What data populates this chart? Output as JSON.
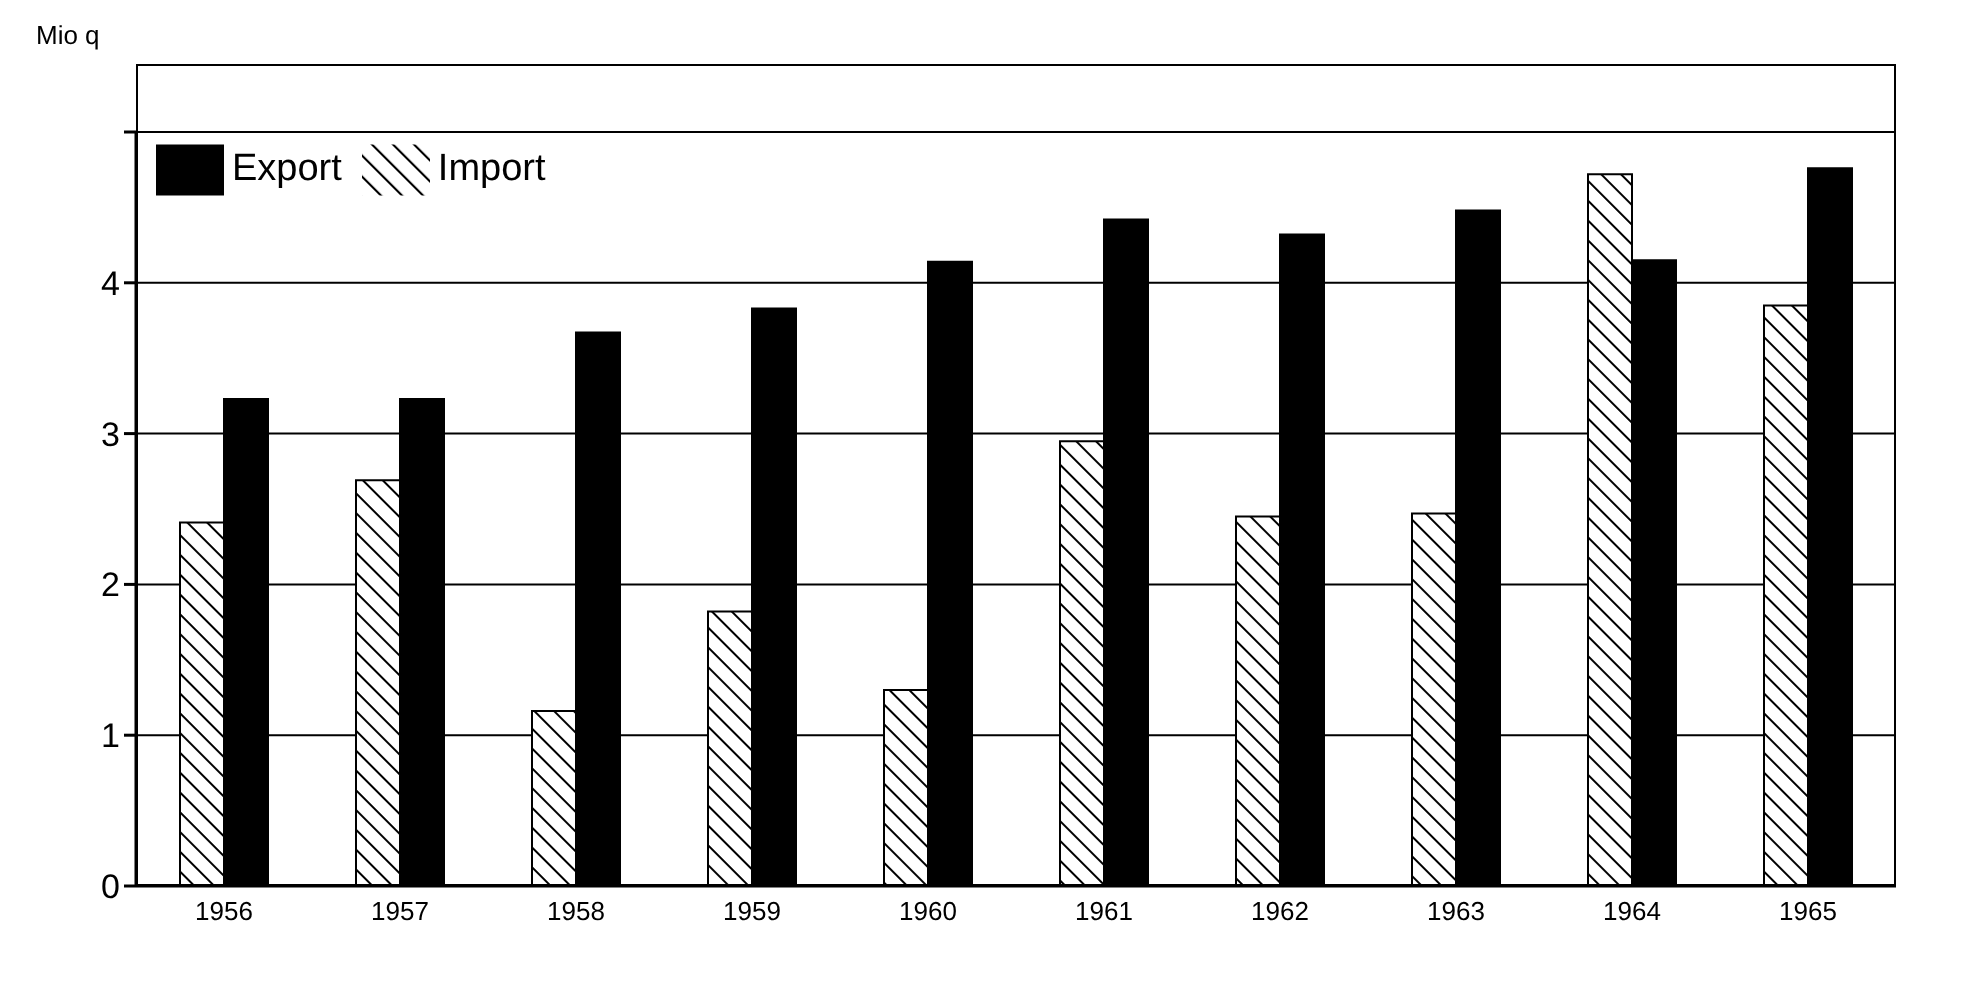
{
  "chart_data": {
    "type": "bar",
    "ylabel": "Mio q",
    "categories": [
      "1956",
      "1957",
      "1958",
      "1959",
      "1960",
      "1961",
      "1962",
      "1963",
      "1964",
      "1965"
    ],
    "series": [
      {
        "name": "Import",
        "color": "#000000",
        "values": [
          2.41,
          2.69,
          1.16,
          1.82,
          1.3,
          2.95,
          2.45,
          2.47,
          4.72,
          3.85
        ]
      },
      {
        "name": "Export",
        "color": "#000000",
        "values": [
          3.23,
          3.23,
          3.67,
          3.83,
          4.14,
          4.42,
          4.32,
          4.48,
          4.15,
          4.76
        ]
      }
    ],
    "ylim": [
      0,
      5
    ],
    "yticks": [
      0,
      1,
      2,
      3,
      4,
      {
        "value": 5,
        "label": null
      }
    ],
    "grid": "y",
    "legend": "top left"
  }
}
